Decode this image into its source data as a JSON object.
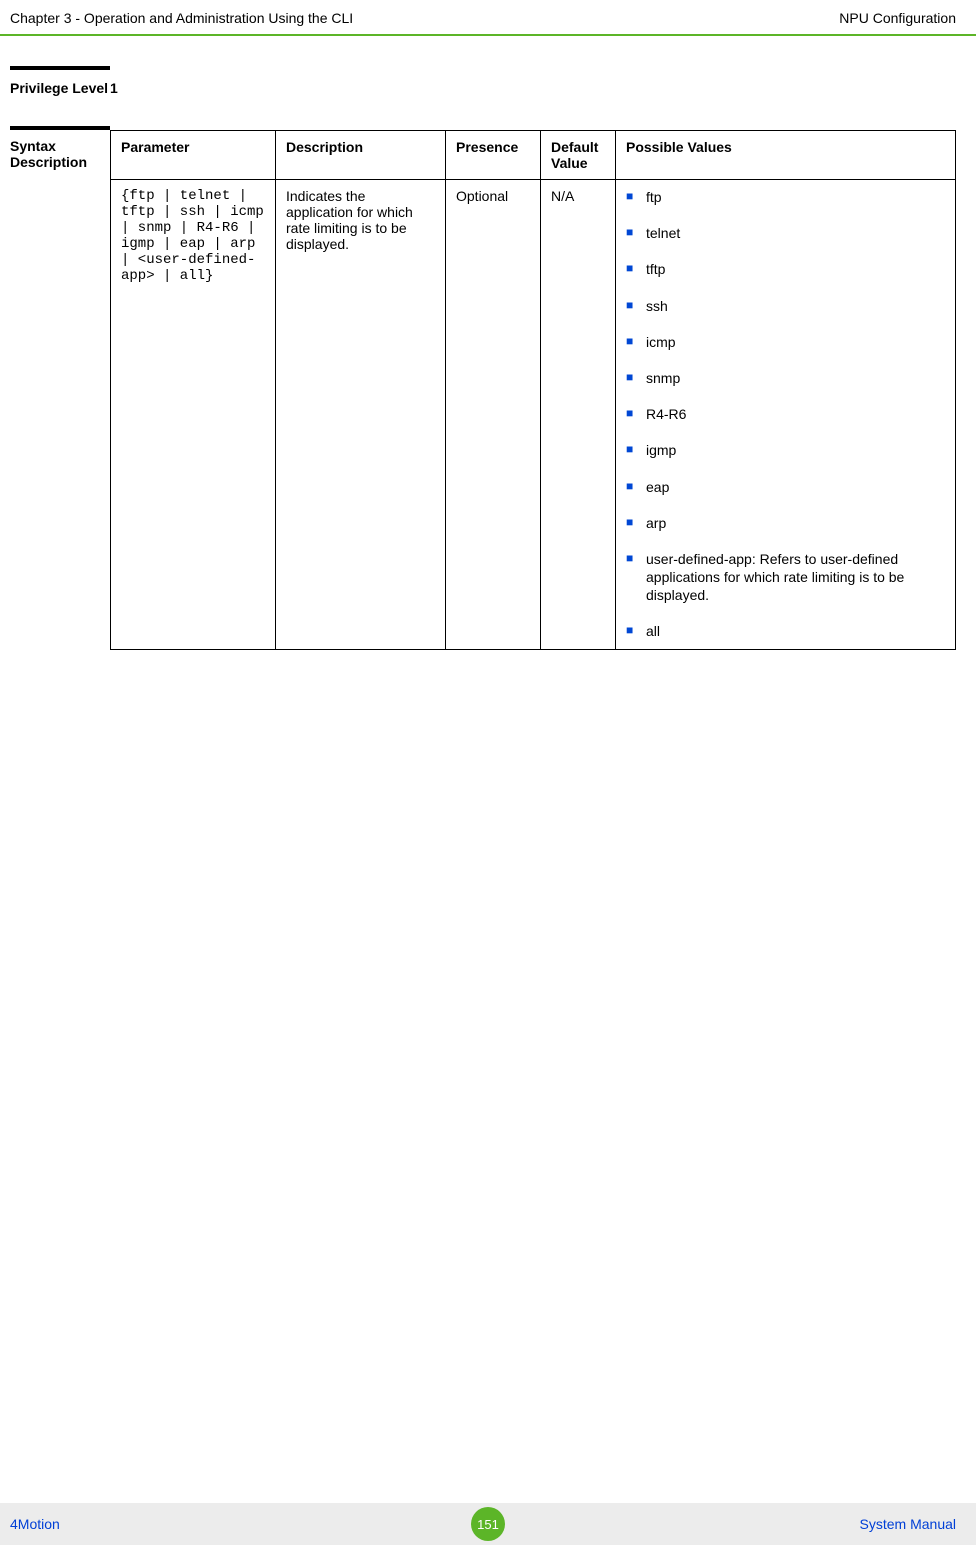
{
  "header": {
    "left": "Chapter 3 - Operation and Administration Using the CLI",
    "right": "NPU Configuration"
  },
  "privilege": {
    "label": "Privilege Level",
    "value": "1"
  },
  "syntax": {
    "label": "Syntax Description",
    "table": {
      "headers": {
        "parameter": "Parameter",
        "description": "Description",
        "presence": "Presence",
        "default": "Default Value",
        "values": "Possible Values"
      },
      "row": {
        "parameter": "{ftp | telnet | tftp | ssh | icmp | snmp | R4-R6 | igmp | eap | arp | <user-defined-app> | all}",
        "description": "Indicates the application for which rate limiting is to be displayed.",
        "presence": "Optional",
        "default": "N/A",
        "values": [
          "ftp",
          "telnet",
          "tftp",
          "ssh",
          "icmp",
          "snmp",
          "R4-R6",
          "igmp",
          "eap",
          "arp",
          "user-defined-app: Refers to user-defined applications for which rate limiting is to be displayed.",
          "all"
        ]
      }
    }
  },
  "footer": {
    "left": "4Motion",
    "page": "151",
    "right": "System Manual"
  }
}
